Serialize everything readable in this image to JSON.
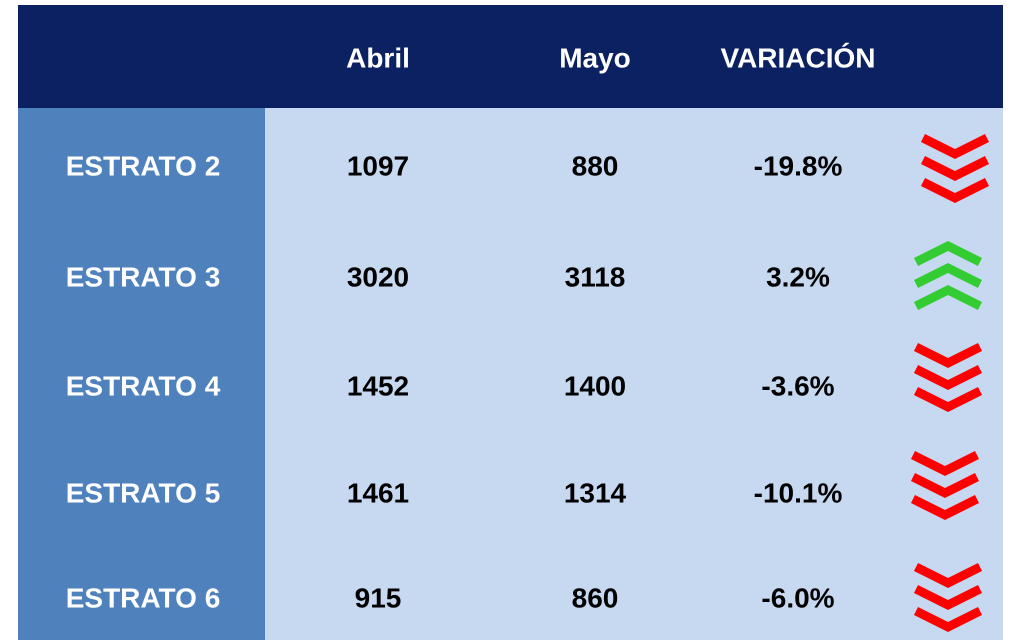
{
  "table": {
    "columns": [
      "Abril",
      "Mayo",
      "VARIACIÓN"
    ],
    "rows": [
      [
        "ESTRATO 2",
        1097,
        880,
        "-19.8%"
      ],
      [
        "ESTRATO 3",
        3020,
        3118,
        "3.2%"
      ],
      [
        "ESTRATO 4",
        1452,
        1400,
        "-3.6%"
      ],
      [
        "ESTRATO 5",
        1461,
        1314,
        "-10.1%"
      ],
      [
        "ESTRATO 6",
        915,
        860,
        "-6.0%"
      ]
    ]
  }
}
